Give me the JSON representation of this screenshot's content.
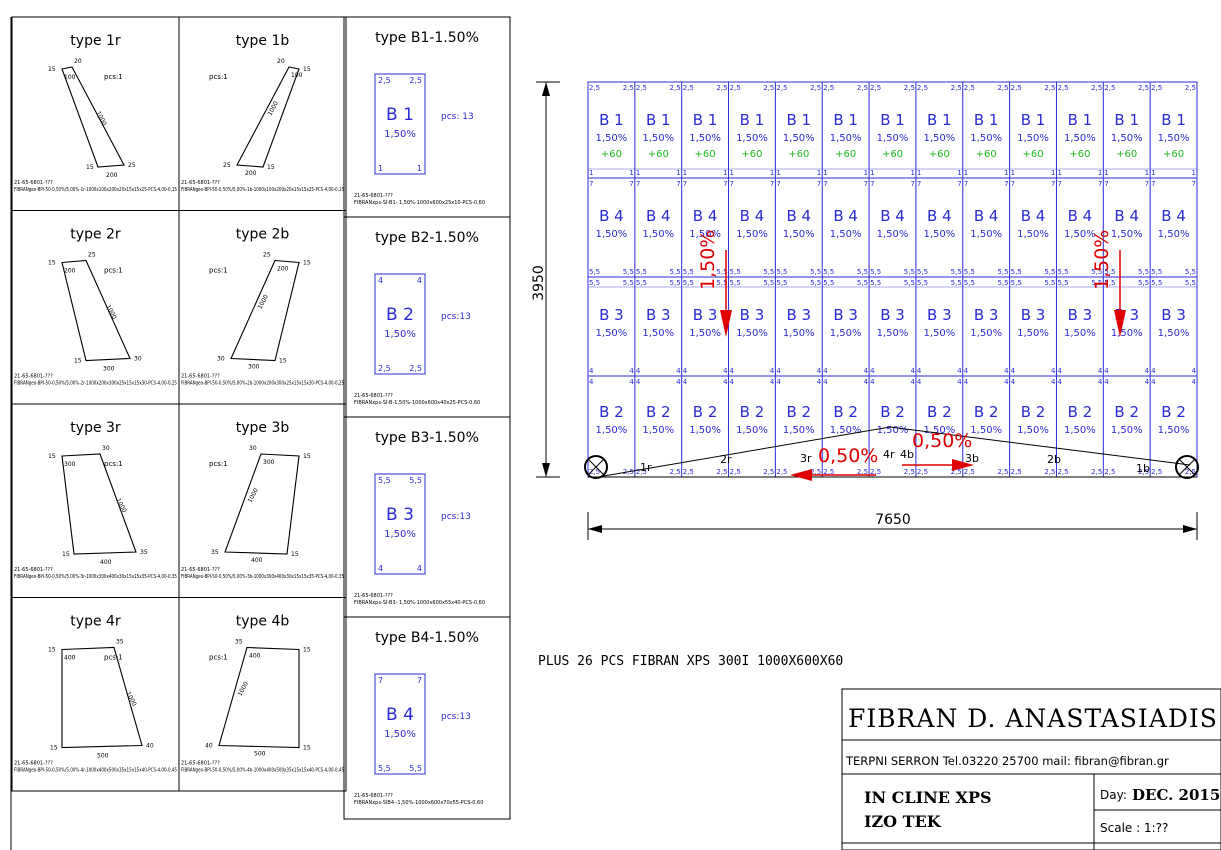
{
  "colors": {
    "line": "#000000",
    "blue": "#2b2bd6",
    "green": "#1fb81f",
    "red": "#e00000"
  },
  "left_cells": [
    {
      "title": "type 1r",
      "pcs": "pcs:1",
      "dims": [
        "15",
        "100",
        "20",
        "1000",
        "15",
        "200",
        "25"
      ],
      "code1": "21-65-6801-???",
      "code2": "FIBRANgeo-BPI-50-0,50%/5,00%-1r-1000x100x200x20x15x15x25-PCS-4,00-0,15"
    },
    {
      "title": "type 1b",
      "pcs": "pcs:1",
      "dims": [
        "20",
        "100",
        "15",
        "1000",
        "25",
        "200",
        "15"
      ],
      "code1": "21-65-6801-???",
      "code2": "FIBRANgeo-BPI-50-0,50%/5,00%-1b-1000x100x200x20x15x15x25-PCS-4,00-0,15"
    },
    {
      "title": "type 2r",
      "pcs": "pcs:1",
      "dims": [
        "15",
        "200",
        "25",
        "1000",
        "15",
        "300",
        "30"
      ],
      "code1": "21-65-6801-???",
      "code2": "FIBRANgeo-BPI-50-0,50%/5,00%-2r-1000x200x300x25x15x15x30-PCS-4,00-0,25"
    },
    {
      "title": "type 2b",
      "pcs": "pcs:1",
      "dims": [
        "25",
        "200",
        "15",
        "1000",
        "30",
        "300",
        "15"
      ],
      "code1": "21-65-6801-???",
      "code2": "FIBRANgeo-BPI-50-0,50%/5,00%-2b-1000x200x300x25x15x15x30-PCS-4,00-0,25"
    },
    {
      "title": "type 3r",
      "pcs": "pcs:1",
      "dims": [
        "15",
        "300",
        "30",
        "1000",
        "15",
        "400",
        "35"
      ],
      "code1": "21-65-6801-???",
      "code2": "FIBRANgeo-BPI-50-0,50%/5,00%-3r-1000x300x400x30x15x15x35-PCS-4,00-0,35"
    },
    {
      "title": "type 3b",
      "pcs": "pcs:1",
      "dims": [
        "30",
        "300",
        "15",
        "1000",
        "35",
        "400",
        "15"
      ],
      "code1": "21-65-6801-???",
      "code2": "FIBRANgeo-BPI-50-0,50%/5,00%-3b-1000x300x400x30x15x15x35-PCS-4,00-0,35"
    },
    {
      "title": "type 4r",
      "pcs": "pcs:1",
      "dims": [
        "15",
        "400",
        "35",
        "1000",
        "15",
        "500",
        "40"
      ],
      "code1": "21-65-6801-???",
      "code2": "FIBRANgeo-BPI-50-0,50%/5,00%-4r-1000x400x500x35x15x15x40-PCS-4,00-0,45"
    },
    {
      "title": "type 4b",
      "pcs": "pcs:1",
      "dims": [
        "35",
        "400",
        "15",
        "1000",
        "40",
        "500",
        "15"
      ],
      "code1": "21-65-6801-???",
      "code2": "FIBRANgeo-BPI-50-0,50%/5,00%-4b-1000x400x500x35x15x15x40-PCS-4,00-0,45"
    }
  ],
  "b_cells": [
    {
      "title": "type B1-1.50%",
      "name": "B1",
      "pct": "1,50%",
      "pcs": "pcs: 13",
      "c_top": "2,5",
      "c_bot": "1",
      "code1": "21-65-6801-???",
      "code2": "FIBRANxps-SI-B1- 1,50%-1000x600x25x10-PCS-0,60"
    },
    {
      "title": "type B2-1.50%",
      "name": "B2",
      "pct": "1,50%",
      "pcs": "pcs:13",
      "c_top": "4",
      "c_bot": "2,5",
      "code1": "21-65-6801-???",
      "code2": "FIBRANxps-SI-B-1,50%-1000x600x40x25-PCS-0,60"
    },
    {
      "title": "type B3-1.50%",
      "name": "B3",
      "pct": "1,50%",
      "pcs": "pcs:13",
      "c_top": "5,5",
      "c_bot": "4",
      "code1": "21-65-6801-???",
      "code2": "FIBRANxps-SI-B3- 1,50%-1000x600x55x40-PCS-0,60"
    },
    {
      "title": "type B4-1.50%",
      "name": "B4",
      "pct": "1,50%",
      "pcs": "pcs:13",
      "c_top": "7",
      "c_bot": "5,5",
      "code1": "21-65-6801-???",
      "code2": "FIBRANxps-SIB4 -1,50%-1000x600x70x55-PCS-0,60"
    }
  ],
  "plan": {
    "rows": [
      {
        "name": "B1",
        "pct": "1,50%",
        "extra": "+60",
        "top": "2,5",
        "bot": "1"
      },
      {
        "name": "B4",
        "pct": "1,50%",
        "extra": "",
        "top": "7",
        "bot": "5,5"
      },
      {
        "name": "B3",
        "pct": "1,50%",
        "extra": "",
        "top": "5,5",
        "bot": "4"
      },
      {
        "name": "B2",
        "pct": "1,50%",
        "extra": "",
        "top": "4",
        "bot": "2,5"
      }
    ],
    "cols": 13,
    "dim_width": "7650",
    "dim_height": "3950",
    "slope_vertical": "1,50%",
    "slope_horizontal": "0,50%",
    "bottom_labels": [
      "1r",
      "2r",
      "3r",
      "4r",
      "4b",
      "3b",
      "2b",
      "1b"
    ]
  },
  "note": "PLUS 26 PCS FIBRAN XPS 300I 1000X600X60",
  "title_block": {
    "company": "FIBRAN D. ANASTASIADIS S.A.",
    "address": "TERPNI SERRON Tel.03220 25700 mail: fibran@fibran.gr",
    "project_line1": "IN CLINE XPS",
    "project_line2": "IZO TEK",
    "day_label": "Day:",
    "day_value": "DEC. 2015",
    "scale": "Scale : 1:??"
  }
}
